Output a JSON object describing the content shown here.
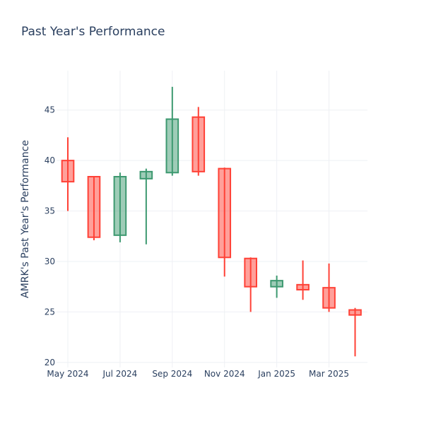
{
  "chart_data": {
    "type": "candlestick",
    "title": "Past Year's Performance",
    "xlabel": "",
    "ylabel": "AMRK's Past Year's Performance",
    "ylim": [
      19.5,
      48.9
    ],
    "yticks": [
      20,
      25,
      30,
      35,
      40,
      45
    ],
    "xticks": [
      "May 2024",
      "Jul 2024",
      "Sep 2024",
      "Nov 2024",
      "Jan 2025",
      "Mar 2025"
    ],
    "grid": true,
    "legend": "none",
    "colors": {
      "increasing": "#3d9970",
      "decreasing": "#ff4136"
    },
    "candles": [
      {
        "x": "2024-05",
        "open": 40.0,
        "high": 42.3,
        "low": 35.0,
        "close": 37.9
      },
      {
        "x": "2024-06",
        "open": 38.4,
        "high": 38.4,
        "low": 32.1,
        "close": 32.4
      },
      {
        "x": "2024-07",
        "open": 32.6,
        "high": 38.8,
        "low": 31.9,
        "close": 38.4
      },
      {
        "x": "2024-08",
        "open": 38.2,
        "high": 39.2,
        "low": 31.7,
        "close": 38.9
      },
      {
        "x": "2024-09",
        "open": 38.8,
        "high": 47.3,
        "low": 38.5,
        "close": 44.1
      },
      {
        "x": "2024-10",
        "open": 44.3,
        "high": 45.3,
        "low": 38.5,
        "close": 38.9
      },
      {
        "x": "2024-11",
        "open": 39.2,
        "high": 39.3,
        "low": 28.5,
        "close": 30.4
      },
      {
        "x": "2024-12",
        "open": 30.3,
        "high": 30.4,
        "low": 25.0,
        "close": 27.5
      },
      {
        "x": "2025-01",
        "open": 27.5,
        "high": 28.6,
        "low": 26.4,
        "close": 28.1
      },
      {
        "x": "2025-02",
        "open": 27.7,
        "high": 30.1,
        "low": 26.2,
        "close": 27.2
      },
      {
        "x": "2025-03",
        "open": 27.4,
        "high": 29.8,
        "low": 25.0,
        "close": 25.4
      },
      {
        "x": "2025-04",
        "open": 25.2,
        "high": 25.4,
        "low": 20.6,
        "close": 24.7
      }
    ]
  }
}
